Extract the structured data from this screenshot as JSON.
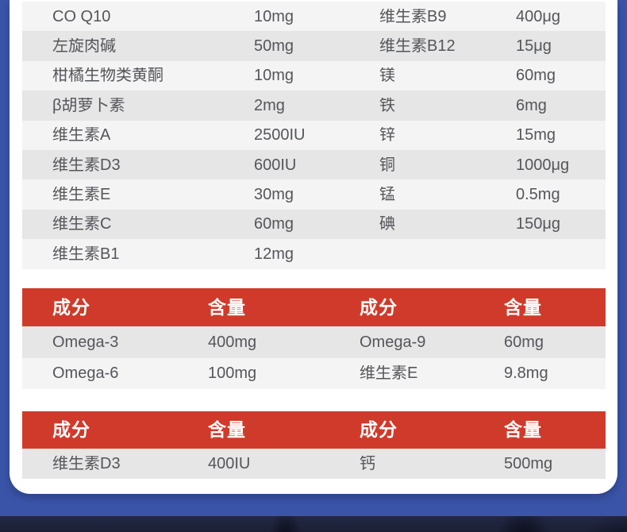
{
  "page": {
    "kind": "supplement-nutrition-facts-panel",
    "colors": {
      "frame_blue": "#3a54a8",
      "card_white": "#ffffff",
      "header_red": "#d03a2a",
      "row_light": "#f4f4f5",
      "row_dark": "#e6e6e7",
      "cell_text": "#55565a",
      "header_text": "#ffffff",
      "photo_dark": "#1e2338"
    }
  },
  "tables": [
    {
      "name": "micronutrients-table",
      "rows": [
        {
          "cells": [
            "CO Q10",
            "10mg",
            "维生素B9",
            "400μg"
          ]
        },
        {
          "cells": [
            "左旋肉碱",
            "50mg",
            "维生素B12",
            "15μg"
          ]
        },
        {
          "cells": [
            "柑橘生物类黄酮",
            "10mg",
            "镁",
            "60mg"
          ]
        },
        {
          "cells": [
            "β胡萝卜素",
            "2mg",
            "铁",
            "6mg"
          ]
        },
        {
          "cells": [
            "维生素A",
            "2500IU",
            "锌",
            "15mg"
          ]
        },
        {
          "cells": [
            "维生素D3",
            "600IU",
            "铜",
            "1000μg"
          ]
        },
        {
          "cells": [
            "维生素E",
            "30mg",
            "锰",
            "0.5mg"
          ]
        },
        {
          "cells": [
            "维生素C",
            "60mg",
            "碘",
            "150μg"
          ]
        },
        {
          "cells": [
            "维生素B1",
            "12mg",
            "",
            ""
          ]
        }
      ]
    },
    {
      "name": "omega-table",
      "header": [
        "成分",
        "含量",
        "成分",
        "含量"
      ],
      "rows": [
        {
          "cells": [
            "Omega-3",
            "400mg",
            "Omega-9",
            "60mg"
          ]
        },
        {
          "cells": [
            "Omega-6",
            "100mg",
            "维生素E",
            "9.8mg"
          ]
        }
      ]
    },
    {
      "name": "calcium-table",
      "header": [
        "成分",
        "含量",
        "成分",
        "含量"
      ],
      "rows": [
        {
          "cells": [
            "维生素D3",
            "400IU",
            "钙",
            "500mg"
          ]
        }
      ]
    }
  ]
}
